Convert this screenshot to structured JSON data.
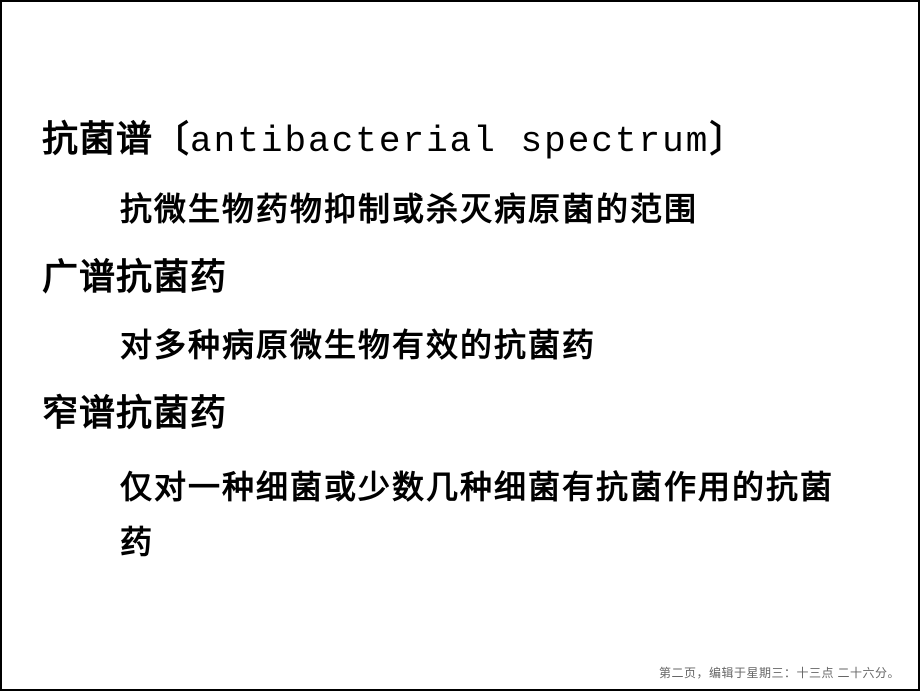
{
  "slide": {
    "term1_cn": "抗菌谱",
    "term1_bracket_open": "〔",
    "term1_en": "antibacterial spectrum",
    "term1_bracket_close": "〕",
    "def1": "抗微生物药物抑制或杀灭病原菌的范围",
    "term2": "广谱抗菌药",
    "def2": "对多种病原微生物有效的抗菌药",
    "term3": "窄谱抗菌药",
    "def3": "仅对一种细菌或少数几种细菌有抗菌作用的抗菌药",
    "marker": "▪",
    "footer": "第二页，编辑于星期三：十三点 二十六分。"
  },
  "style": {
    "background_color": "#ffffff",
    "text_color": "#000000",
    "footer_color": "#666666",
    "term_fontsize": 36,
    "def_fontsize": 32,
    "footer_fontsize": 12,
    "slide_width": 920,
    "slide_height": 691,
    "border_color": "#000000",
    "border_width": 2
  }
}
